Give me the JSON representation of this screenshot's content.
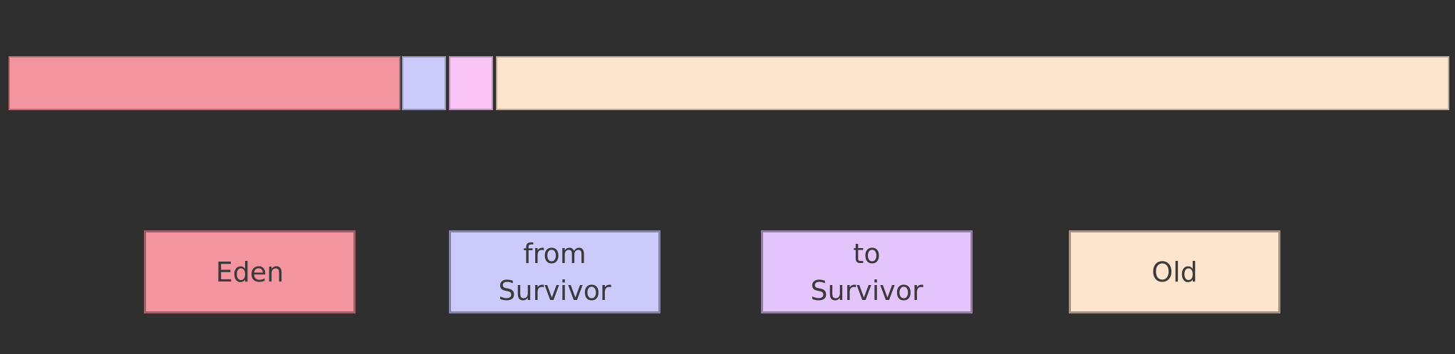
{
  "colors": {
    "background": "#2f2f2f",
    "eden": "#f4949f",
    "from_survivor": "#cbcafb",
    "to_survivor": "#f8c5f6",
    "to_survivor_legend": "#e4c5fb",
    "old": "#fde4cd"
  },
  "heap_bar": {
    "segments": [
      {
        "id": "eden",
        "color": "#f4949f"
      },
      {
        "id": "from_survivor",
        "color": "#cbcafb"
      },
      {
        "id": "to_survivor",
        "color": "#f8c5f6"
      },
      {
        "id": "old",
        "color": "#fde4cd"
      }
    ]
  },
  "legend": {
    "eden": {
      "line1": "Eden"
    },
    "from_survivor": {
      "line1": "from",
      "line2": "Survivor"
    },
    "to_survivor": {
      "line1": "to",
      "line2": "Survivor"
    },
    "old": {
      "line1": "Old"
    }
  }
}
